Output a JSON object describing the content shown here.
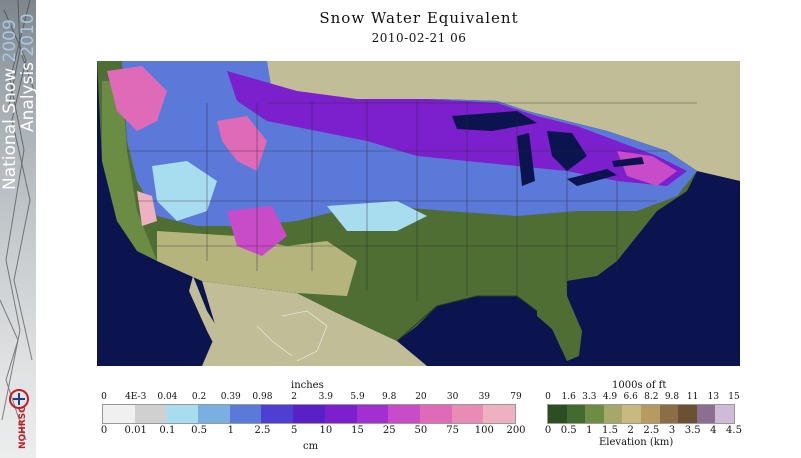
{
  "banner": {
    "title_a": "National Snow ",
    "title_a_year": "2009",
    "title_b": "Analysis ",
    "title_b_year": "2010",
    "logo_text": "NOHRSC"
  },
  "title": "Snow Water Equivalent",
  "datetime": "2010-02-21 06",
  "colors": {
    "ocean": "#0c1450",
    "land_no_data": "#c0bd97",
    "swe": [
      "#f0f0f0",
      "#d0d0d0",
      "#a8dcef",
      "#7ab0e0",
      "#5a79d9",
      "#4d3fd1",
      "#5a20c8",
      "#7c1fcc",
      "#a22fd2",
      "#c84cc8",
      "#df6ab7",
      "#e98cb5",
      "#eeb1c1",
      "#f1ccd1"
    ],
    "elevation": [
      "#2d4e22",
      "#436a2f",
      "#6f8c45",
      "#a5a868",
      "#c8b97e",
      "#b79a62",
      "#8c6e45",
      "#6c5034",
      "#8b6e92",
      "#cdbbd8",
      "#ffffff"
    ]
  },
  "legend_swe": {
    "unit_top": "inches",
    "unit_bottom": "cm",
    "inches": [
      "0",
      "4E-3",
      "0.04",
      "0.2",
      "0.39",
      "0.98",
      "2",
      "3.9",
      "5.9",
      "9.8",
      "20",
      "30",
      "39",
      "79"
    ],
    "cm": [
      "0",
      "0.01",
      "0.1",
      "0.5",
      "1",
      "2.5",
      "5",
      "10",
      "15",
      "25",
      "50",
      "75",
      "100",
      "200"
    ]
  },
  "legend_elev": {
    "unit_top": "1000s of ft",
    "unit_bottom": "Elevation (km)",
    "feet": [
      "0",
      "1.6",
      "3.3",
      "4.9",
      "6.6",
      "8.2",
      "9.8",
      "11",
      "13",
      "15"
    ],
    "km": [
      "0",
      "0.5",
      "1",
      "1.5",
      "2",
      "2.5",
      "3",
      "3.5",
      "4",
      "4.5"
    ]
  }
}
